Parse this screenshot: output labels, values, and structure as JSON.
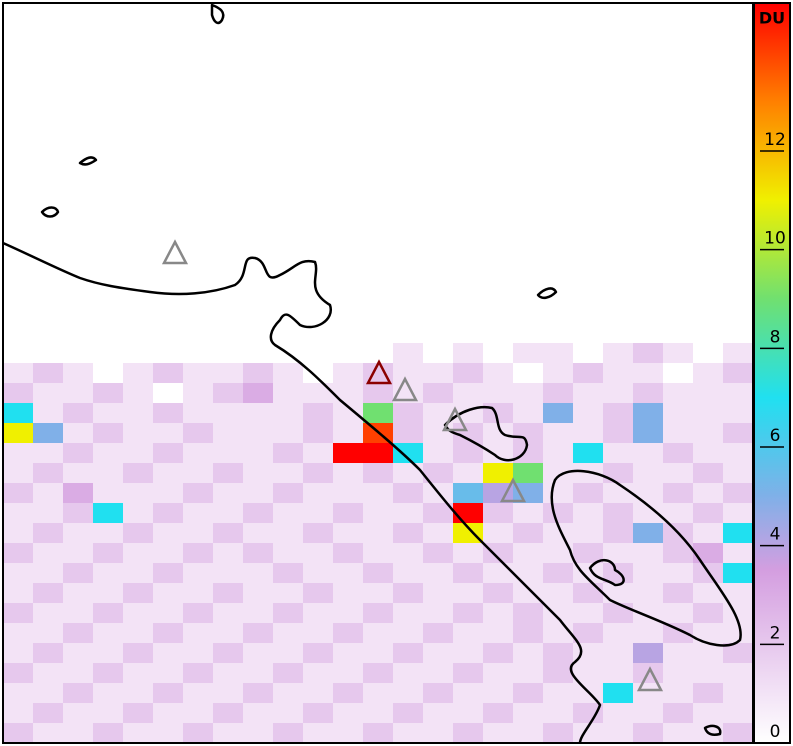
{
  "map": {
    "colorbar": {
      "label": "DU",
      "clim": [
        0,
        15
      ],
      "ticks": [
        0,
        2,
        4,
        6,
        8,
        10,
        12
      ],
      "colormap": [
        [
          0,
          "#ffffff"
        ],
        [
          3.5,
          "#d49ee0"
        ],
        [
          5,
          "#80b0e8"
        ],
        [
          7,
          "#20e0f0"
        ],
        [
          9,
          "#70e070"
        ],
        [
          11,
          "#f0f000"
        ],
        [
          13,
          "#ff8000"
        ],
        [
          15,
          "#ff0000"
        ]
      ]
    },
    "pixels": [
      [
        null,
        null,
        null,
        null,
        null,
        null,
        null,
        null,
        null,
        null,
        null,
        null,
        null,
        1,
        0,
        1,
        0,
        1,
        1,
        0,
        1,
        2,
        1,
        0,
        1
      ],
      [
        1,
        2,
        1,
        0,
        1,
        2,
        1,
        1,
        2,
        1,
        0,
        1,
        2,
        1,
        1,
        2,
        1,
        0,
        1,
        2,
        1,
        1,
        0,
        1,
        2
      ],
      [
        2,
        1,
        1,
        2,
        1,
        0,
        1,
        2,
        3,
        1,
        1,
        1,
        2,
        1,
        2,
        1,
        1,
        1,
        2,
        1,
        1,
        2,
        1,
        1,
        1
      ],
      [
        7,
        1,
        2,
        1,
        1,
        2,
        1,
        1,
        1,
        1,
        2,
        1,
        9,
        2,
        1,
        1,
        2,
        1,
        5,
        1,
        2,
        5,
        1,
        1,
        1
      ],
      [
        11,
        5,
        1,
        2,
        1,
        1,
        2,
        1,
        1,
        1,
        2,
        1,
        14,
        2,
        1,
        2,
        1,
        2,
        1,
        1,
        2,
        5,
        1,
        1,
        2
      ],
      [
        1,
        1,
        2,
        1,
        1,
        2,
        1,
        1,
        1,
        2,
        1,
        15,
        15,
        7,
        1,
        2,
        1,
        2,
        1,
        7,
        1,
        1,
        2,
        1,
        1
      ],
      [
        1,
        2,
        1,
        1,
        2,
        1,
        1,
        2,
        1,
        1,
        2,
        1,
        2,
        1,
        2,
        1,
        11,
        9,
        1,
        1,
        2,
        1,
        1,
        2,
        1
      ],
      [
        2,
        1,
        3,
        1,
        1,
        1,
        2,
        1,
        1,
        2,
        1,
        1,
        1,
        2,
        1,
        5.5,
        4,
        5,
        1,
        2,
        1,
        1,
        2,
        1,
        2
      ],
      [
        1,
        1,
        2,
        7,
        1,
        2,
        1,
        1,
        2,
        1,
        1,
        2,
        1,
        1,
        2,
        15,
        2,
        1,
        2,
        1,
        2,
        1,
        1,
        2,
        1
      ],
      [
        1,
        2,
        1,
        1,
        2,
        1,
        1,
        2,
        1,
        1,
        2,
        1,
        1,
        2,
        1,
        11,
        1,
        2,
        1,
        1,
        2,
        5,
        2,
        1,
        7
      ],
      [
        2,
        1,
        1,
        2,
        1,
        1,
        2,
        1,
        2,
        1,
        1,
        2,
        1,
        1,
        2,
        1,
        2,
        1,
        1,
        2,
        1,
        1,
        2,
        3,
        1
      ],
      [
        1,
        1,
        2,
        1,
        1,
        2,
        1,
        1,
        1,
        2,
        1,
        1,
        2,
        1,
        1,
        2,
        1,
        1,
        2,
        1,
        2,
        1,
        1,
        2,
        7
      ],
      [
        1,
        2,
        1,
        1,
        2,
        1,
        1,
        2,
        1,
        1,
        2,
        1,
        1,
        2,
        1,
        1,
        2,
        1,
        1,
        2,
        1,
        1,
        2,
        1,
        1
      ],
      [
        2,
        1,
        1,
        2,
        1,
        1,
        2,
        1,
        1,
        2,
        1,
        1,
        2,
        1,
        1,
        2,
        1,
        2,
        1,
        1,
        2,
        1,
        1,
        2,
        1
      ],
      [
        1,
        1,
        2,
        1,
        1,
        2,
        1,
        1,
        2,
        1,
        1,
        2,
        1,
        1,
        2,
        1,
        1,
        2,
        1,
        2,
        1,
        1,
        2,
        1,
        1
      ],
      [
        1,
        2,
        1,
        1,
        2,
        1,
        1,
        2,
        1,
        1,
        2,
        1,
        1,
        2,
        1,
        1,
        2,
        1,
        2,
        1,
        1,
        4,
        1,
        1,
        2
      ],
      [
        2,
        1,
        1,
        2,
        1,
        1,
        2,
        1,
        1,
        2,
        1,
        1,
        2,
        1,
        1,
        2,
        1,
        1,
        2,
        1,
        1,
        2,
        1,
        1,
        1
      ],
      [
        1,
        1,
        2,
        1,
        1,
        2,
        1,
        1,
        2,
        1,
        1,
        2,
        1,
        1,
        2,
        1,
        1,
        2,
        1,
        1,
        7,
        1,
        1,
        2,
        1
      ],
      [
        1,
        2,
        1,
        1,
        2,
        1,
        1,
        2,
        1,
        1,
        2,
        1,
        1,
        2,
        1,
        1,
        2,
        1,
        1,
        2,
        1,
        1,
        2,
        1,
        1
      ],
      [
        2,
        1,
        1,
        2,
        1,
        1,
        2,
        1,
        1,
        2,
        1,
        1,
        2,
        1,
        1,
        2,
        1,
        1,
        2,
        1,
        1,
        2,
        1,
        1,
        2
      ]
    ]
  }
}
